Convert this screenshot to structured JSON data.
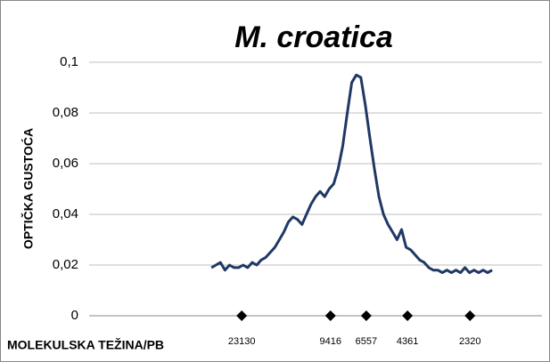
{
  "chart_data": {
    "type": "line",
    "title": "M. croatica",
    "y_label": "OPTIČKA GUSTOĆA",
    "x_label": "MOLEKULSKA TEŽINA/PB",
    "xlim": [
      0,
      100
    ],
    "ylim": [
      0,
      0.1
    ],
    "yticks": [
      0,
      {
        "value": 0.02,
        "label": "0,02"
      },
      {
        "value": 0.04,
        "label": "0,04"
      },
      {
        "value": 0.06,
        "label": "0,06"
      },
      {
        "value": 0.08,
        "label": "0,08"
      },
      {
        "value": 0.1,
        "label": "0,1"
      }
    ],
    "grid": true,
    "series": [
      {
        "color": "#1f3864",
        "x": [
          27,
          28,
          29,
          30,
          31,
          32,
          33,
          34,
          35,
          36,
          37,
          38,
          39,
          40,
          41,
          42,
          43,
          44,
          45,
          46,
          47,
          48,
          49,
          50,
          51,
          52,
          53,
          54,
          55,
          56,
          57,
          58,
          59,
          60,
          61,
          62,
          63,
          64,
          65,
          66,
          67,
          68,
          69,
          70,
          71,
          72,
          73,
          74,
          75,
          76,
          77,
          78,
          79,
          80,
          81,
          82,
          83,
          84,
          85,
          86,
          87,
          88,
          89
        ],
        "values": [
          0.019,
          0.02,
          0.021,
          0.018,
          0.02,
          0.019,
          0.019,
          0.02,
          0.019,
          0.021,
          0.02,
          0.022,
          0.023,
          0.025,
          0.027,
          0.03,
          0.033,
          0.037,
          0.039,
          0.038,
          0.036,
          0.04,
          0.044,
          0.047,
          0.049,
          0.047,
          0.05,
          0.052,
          0.058,
          0.067,
          0.08,
          0.092,
          0.095,
          0.094,
          0.083,
          0.07,
          0.058,
          0.047,
          0.04,
          0.036,
          0.033,
          0.03,
          0.034,
          0.027,
          0.026,
          0.024,
          0.022,
          0.021,
          0.019,
          0.018,
          0.018,
          0.017,
          0.018,
          0.017,
          0.018,
          0.017,
          0.019,
          0.017,
          0.018,
          0.017,
          0.018,
          0.017,
          0.018
        ]
      }
    ],
    "markers": {
      "color": "#000000",
      "x": [
        33.7,
        53.3,
        61.2,
        70.3,
        84.1
      ],
      "values": [
        0,
        0,
        0,
        0,
        0
      ],
      "labels": [
        23130,
        9416,
        6557,
        4361,
        2320
      ]
    }
  }
}
